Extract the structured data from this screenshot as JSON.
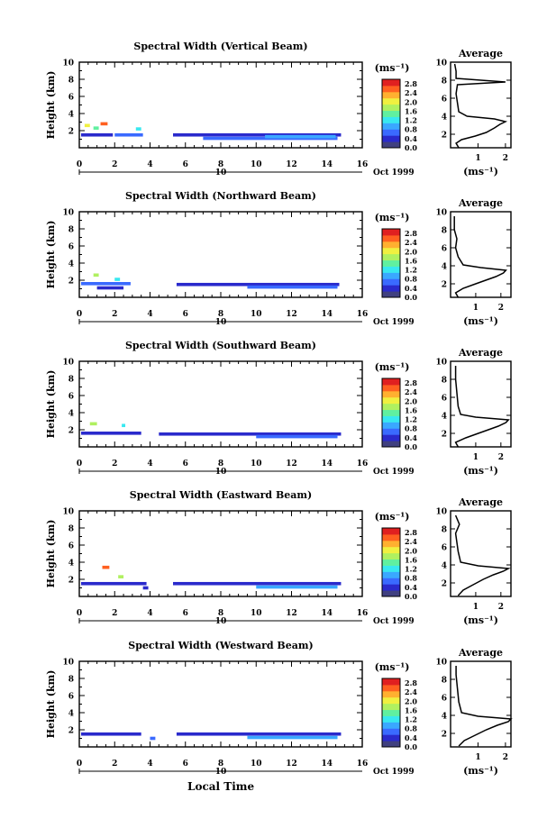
{
  "figure": {
    "date_label": "Oct 1999",
    "x_axis_label": "Local Time",
    "day_label": "10"
  },
  "colorbar": {
    "unit": "(ms⁻¹)",
    "tick_labels": [
      "2.8",
      "2.4",
      "2.0",
      "1.6",
      "1.2",
      "0.8",
      "0.4",
      "0.0"
    ],
    "colors": [
      "#404080",
      "#2a2acc",
      "#3a6aff",
      "#3aa8ff",
      "#38e8f0",
      "#60f0a0",
      "#b0f060",
      "#f0f040",
      "#ffb030",
      "#ff6020",
      "#e02020"
    ]
  },
  "chart_data": [
    {
      "type": "heatmap",
      "title": "Spectral Width (Vertical Beam)",
      "xlabel": "",
      "ylabel": "Height (km)",
      "xlim": [
        0,
        16
      ],
      "ylim": [
        0,
        10
      ],
      "x_ticks": [
        "0",
        "2",
        "4",
        "6",
        "8",
        "10",
        "12",
        "14",
        "16"
      ],
      "y_ticks": [
        "2",
        "4",
        "6",
        "8",
        "10"
      ],
      "observations": [
        {
          "x0": 0.1,
          "x1": 1.9,
          "y": 1.5,
          "v": 0.4
        },
        {
          "x0": 2.0,
          "x1": 3.6,
          "y": 1.5,
          "v": 0.5
        },
        {
          "x0": 5.3,
          "x1": 14.8,
          "y": 1.5,
          "v": 0.3
        },
        {
          "x0": 7.0,
          "x1": 14.6,
          "y": 1.1,
          "v": 0.5
        },
        {
          "x0": 10.5,
          "x1": 14.5,
          "y": 1.3,
          "v": 0.7
        },
        {
          "x0": 1.2,
          "x1": 1.6,
          "y": 2.8,
          "v": 2.6
        },
        {
          "x0": 0.3,
          "x1": 0.6,
          "y": 2.6,
          "v": 2.0
        },
        {
          "x0": 3.2,
          "x1": 3.5,
          "y": 2.2,
          "v": 1.1
        },
        {
          "x0": 0.8,
          "x1": 1.1,
          "y": 2.3,
          "v": 1.4
        }
      ],
      "average": {
        "title": "Average",
        "xlabel": "(ms⁻¹)",
        "x_ticks": [
          "1",
          "2"
        ],
        "xlim": [
          0,
          2.2
        ],
        "y_ticks": [
          "2",
          "4",
          "6",
          "8",
          "10"
        ],
        "ylim": [
          0.5,
          10
        ],
        "profile": [
          [
            0.3,
            0.5
          ],
          [
            0.2,
            1.0
          ],
          [
            0.4,
            1.4
          ],
          [
            0.9,
            1.8
          ],
          [
            1.3,
            2.2
          ],
          [
            1.6,
            2.7
          ],
          [
            1.8,
            3.1
          ],
          [
            2.0,
            3.4
          ],
          [
            1.6,
            3.7
          ],
          [
            0.6,
            4.0
          ],
          [
            0.3,
            4.5
          ],
          [
            0.25,
            5.5
          ],
          [
            0.2,
            6.5
          ],
          [
            0.25,
            7.5
          ],
          [
            2.0,
            7.8
          ],
          [
            0.2,
            8.2
          ],
          [
            0.2,
            9.0
          ],
          [
            0.15,
            9.8
          ]
        ]
      }
    },
    {
      "type": "heatmap",
      "title": "Spectral Width (Northward Beam)",
      "xlabel": "",
      "ylabel": "Height (km)",
      "xlim": [
        0,
        16
      ],
      "ylim": [
        0,
        10
      ],
      "x_ticks": [
        "0",
        "2",
        "4",
        "6",
        "8",
        "10",
        "12",
        "14",
        "16"
      ],
      "y_ticks": [
        "2",
        "4",
        "6",
        "8",
        "10"
      ],
      "observations": [
        {
          "x0": 0.1,
          "x1": 2.9,
          "y": 1.6,
          "v": 0.5
        },
        {
          "x0": 1.0,
          "x1": 2.5,
          "y": 1.1,
          "v": 0.3
        },
        {
          "x0": 5.5,
          "x1": 14.7,
          "y": 1.5,
          "v": 0.3
        },
        {
          "x0": 9.5,
          "x1": 14.6,
          "y": 1.2,
          "v": 0.6
        },
        {
          "x0": 0.8,
          "x1": 1.1,
          "y": 2.6,
          "v": 1.8
        },
        {
          "x0": 2.0,
          "x1": 2.3,
          "y": 2.1,
          "v": 1.2
        }
      ],
      "average": {
        "title": "Average",
        "xlabel": "(ms⁻¹)",
        "x_ticks": [
          "1",
          "2"
        ],
        "xlim": [
          0,
          2.4
        ],
        "y_ticks": [
          "2",
          "4",
          "6",
          "8",
          "10"
        ],
        "ylim": [
          0.5,
          10
        ],
        "profile": [
          [
            0.3,
            0.5
          ],
          [
            0.2,
            1.0
          ],
          [
            0.5,
            1.5
          ],
          [
            1.0,
            2.0
          ],
          [
            1.4,
            2.4
          ],
          [
            1.8,
            2.8
          ],
          [
            2.1,
            3.2
          ],
          [
            2.2,
            3.5
          ],
          [
            1.2,
            3.8
          ],
          [
            0.5,
            4.1
          ],
          [
            0.3,
            5.0
          ],
          [
            0.2,
            6.0
          ],
          [
            0.25,
            7.0
          ],
          [
            0.15,
            8.0
          ],
          [
            0.15,
            9.5
          ]
        ]
      }
    },
    {
      "type": "heatmap",
      "title": "Spectral Width (Southward Beam)",
      "xlabel": "",
      "ylabel": "Height (km)",
      "xlim": [
        0,
        16
      ],
      "ylim": [
        0,
        10
      ],
      "x_ticks": [
        "0",
        "2",
        "4",
        "6",
        "8",
        "10",
        "12",
        "14",
        "16"
      ],
      "y_ticks": [
        "2",
        "4",
        "6",
        "8",
        "10"
      ],
      "observations": [
        {
          "x0": 0.1,
          "x1": 3.5,
          "y": 1.6,
          "v": 0.4
        },
        {
          "x0": 4.5,
          "x1": 14.8,
          "y": 1.5,
          "v": 0.3
        },
        {
          "x0": 10.0,
          "x1": 14.6,
          "y": 1.2,
          "v": 0.6
        },
        {
          "x0": 0.6,
          "x1": 1.0,
          "y": 2.7,
          "v": 1.6
        },
        {
          "x0": 2.4,
          "x1": 2.6,
          "y": 2.5,
          "v": 1.0
        }
      ],
      "average": {
        "title": "Average",
        "xlabel": "(ms⁻¹)",
        "x_ticks": [
          "1",
          "2"
        ],
        "xlim": [
          0,
          2.4
        ],
        "y_ticks": [
          "2",
          "4",
          "6",
          "8",
          "10"
        ],
        "ylim": [
          0.5,
          10
        ],
        "profile": [
          [
            0.3,
            0.5
          ],
          [
            0.2,
            1.0
          ],
          [
            0.6,
            1.5
          ],
          [
            1.1,
            2.0
          ],
          [
            1.5,
            2.4
          ],
          [
            1.9,
            2.8
          ],
          [
            2.2,
            3.2
          ],
          [
            2.3,
            3.5
          ],
          [
            1.0,
            3.8
          ],
          [
            0.4,
            4.1
          ],
          [
            0.3,
            5.0
          ],
          [
            0.25,
            6.5
          ],
          [
            0.2,
            8.0
          ],
          [
            0.2,
            9.5
          ]
        ]
      }
    },
    {
      "type": "heatmap",
      "title": "Spectral Width (Eastward Beam)",
      "xlabel": "",
      "ylabel": "Height (km)",
      "xlim": [
        0,
        16
      ],
      "ylim": [
        0,
        10
      ],
      "x_ticks": [
        "0",
        "2",
        "4",
        "6",
        "8",
        "10",
        "12",
        "14",
        "16"
      ],
      "y_ticks": [
        "2",
        "4",
        "6",
        "8",
        "10"
      ],
      "observations": [
        {
          "x0": 0.1,
          "x1": 3.8,
          "y": 1.5,
          "v": 0.4
        },
        {
          "x0": 5.3,
          "x1": 14.8,
          "y": 1.5,
          "v": 0.3
        },
        {
          "x0": 10.0,
          "x1": 14.6,
          "y": 1.1,
          "v": 0.7
        },
        {
          "x0": 1.3,
          "x1": 1.7,
          "y": 3.4,
          "v": 2.5
        },
        {
          "x0": 2.2,
          "x1": 2.5,
          "y": 2.3,
          "v": 1.8
        },
        {
          "x0": 3.6,
          "x1": 3.9,
          "y": 1.0,
          "v": 0.4
        }
      ],
      "average": {
        "title": "Average",
        "xlabel": "(ms⁻¹)",
        "x_ticks": [
          "1",
          "2"
        ],
        "xlim": [
          0,
          2.4
        ],
        "y_ticks": [
          "2",
          "4",
          "6",
          "8",
          "10"
        ],
        "ylim": [
          0.5,
          10
        ],
        "profile": [
          [
            0.3,
            0.6
          ],
          [
            0.5,
            1.2
          ],
          [
            0.9,
            1.8
          ],
          [
            1.3,
            2.4
          ],
          [
            1.7,
            2.9
          ],
          [
            2.1,
            3.3
          ],
          [
            2.3,
            3.6
          ],
          [
            1.1,
            3.9
          ],
          [
            0.4,
            4.3
          ],
          [
            0.3,
            5.5
          ],
          [
            0.25,
            6.5
          ],
          [
            0.2,
            7.5
          ],
          [
            0.35,
            8.5
          ],
          [
            0.2,
            9.5
          ]
        ]
      }
    },
    {
      "type": "heatmap",
      "title": "Spectral Width (Westward Beam)",
      "xlabel": "Local Time",
      "ylabel": "Height (km)",
      "xlim": [
        0,
        16
      ],
      "ylim": [
        0,
        10
      ],
      "x_ticks": [
        "0",
        "2",
        "4",
        "6",
        "8",
        "10",
        "12",
        "14",
        "16"
      ],
      "y_ticks": [
        "2",
        "4",
        "6",
        "8",
        "10"
      ],
      "observations": [
        {
          "x0": 0.1,
          "x1": 3.5,
          "y": 1.5,
          "v": 0.4
        },
        {
          "x0": 5.5,
          "x1": 14.8,
          "y": 1.5,
          "v": 0.3
        },
        {
          "x0": 9.5,
          "x1": 14.6,
          "y": 1.1,
          "v": 0.7
        },
        {
          "x0": 4.0,
          "x1": 4.3,
          "y": 1.0,
          "v": 0.5
        }
      ],
      "average": {
        "title": "Average",
        "xlabel": "(ms⁻¹)",
        "x_ticks": [
          "1",
          "2"
        ],
        "xlim": [
          0,
          2.2
        ],
        "y_ticks": [
          "2",
          "4",
          "6",
          "8",
          "10"
        ],
        "ylim": [
          0.5,
          10
        ],
        "profile": [
          [
            0.3,
            0.6
          ],
          [
            0.5,
            1.2
          ],
          [
            0.9,
            1.8
          ],
          [
            1.3,
            2.4
          ],
          [
            1.7,
            2.9
          ],
          [
            2.1,
            3.3
          ],
          [
            2.2,
            3.6
          ],
          [
            1.0,
            3.9
          ],
          [
            0.4,
            4.3
          ],
          [
            0.3,
            5.5
          ],
          [
            0.25,
            7.0
          ],
          [
            0.2,
            8.5
          ],
          [
            0.2,
            9.5
          ]
        ]
      }
    }
  ]
}
